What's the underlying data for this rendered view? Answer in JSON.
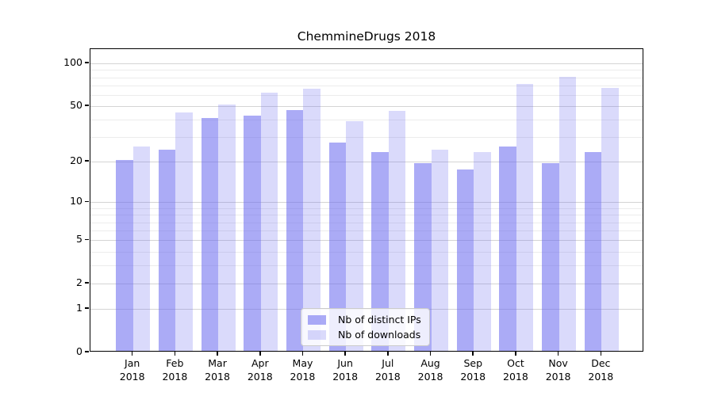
{
  "chart_data": {
    "type": "bar",
    "title": "ChemmineDrugs 2018",
    "categories": [
      "Jan",
      "Feb",
      "Mar",
      "Apr",
      "May",
      "Jun",
      "Jul",
      "Aug",
      "Sep",
      "Oct",
      "Nov",
      "Dec"
    ],
    "year_label": "2018",
    "series": [
      {
        "name": "Nb of distinct IPs",
        "fill": "rgba(102,102,238,0.55)",
        "values": [
          20,
          24,
          40,
          42,
          46,
          27,
          23,
          19,
          17,
          25,
          19,
          23
        ]
      },
      {
        "name": "Nb of downloads",
        "fill": "rgba(102,102,238,0.24)",
        "values": [
          25,
          44,
          50,
          61,
          65,
          38,
          45,
          24,
          23,
          70,
          79,
          66
        ]
      }
    ],
    "xlabel": "",
    "ylabel": "",
    "y_scale": "log(1+x)",
    "ylim": [
      0,
      126
    ],
    "y_ticks_major": [
      0,
      1,
      2,
      5,
      10,
      20,
      50,
      100
    ],
    "y_gridlines_minor": [
      3,
      4,
      6,
      7,
      8,
      9,
      30,
      40,
      60,
      70,
      80,
      90
    ],
    "grid": true,
    "legend_position": "lower center"
  },
  "colors": {
    "series_base": "#6666ee",
    "ips_fill": "rgba(102,102,238,0.55)",
    "downloads_fill": "rgba(102,102,238,0.24)",
    "grid_major": "#d4d4d4",
    "grid_minor": "#ececec",
    "axis_frame": "#000000",
    "legend_border": "#cbcbcb"
  }
}
